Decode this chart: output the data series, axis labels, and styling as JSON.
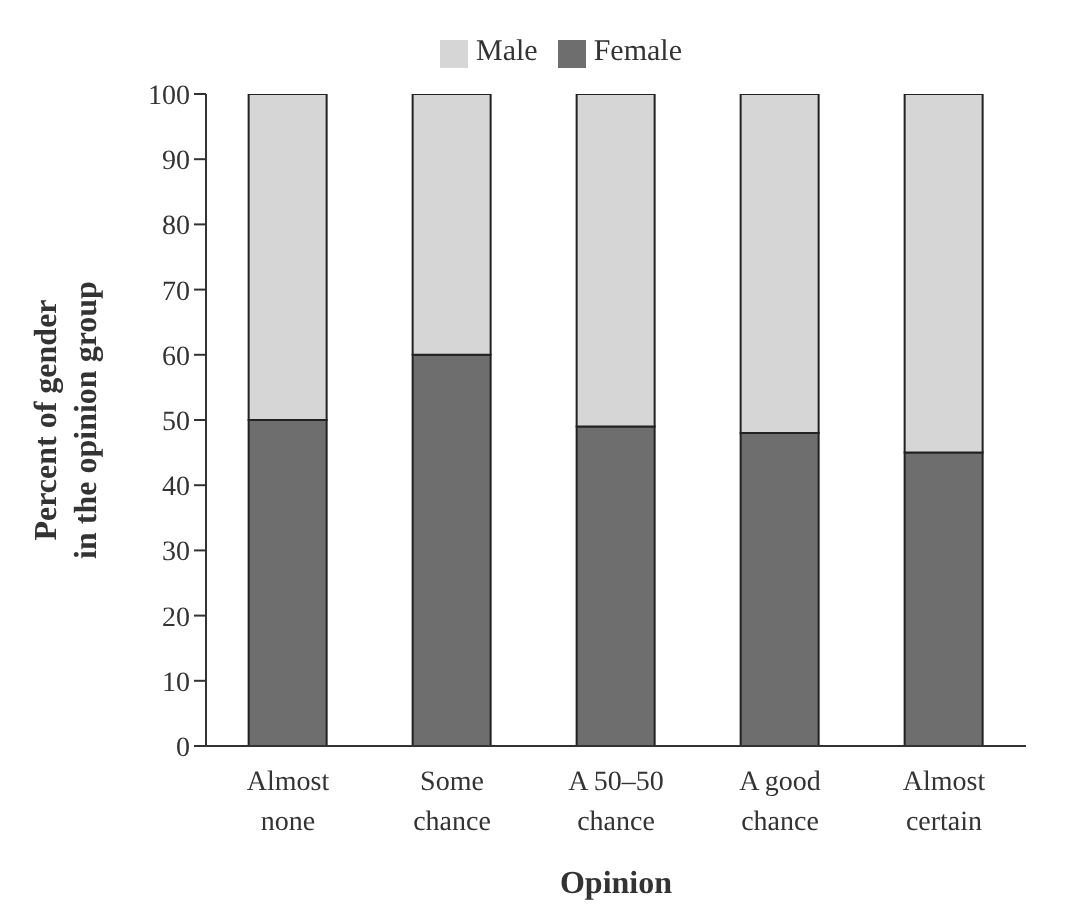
{
  "chart_data": {
    "type": "bar",
    "stacked": true,
    "xlabel": "Opinion",
    "ylabel": "Percent of gender\nin the opinion group",
    "categories": [
      "Almost\nnone",
      "Some\nchance",
      "A 50–50\nchance",
      "A good\nchance",
      "Almost\ncertain"
    ],
    "series": [
      {
        "name": "Female",
        "color": "#6e6e6e",
        "values": [
          50,
          60,
          49,
          48,
          45
        ]
      },
      {
        "name": "Male",
        "color": "#d6d6d6",
        "values": [
          50,
          40,
          51,
          52,
          55
        ]
      }
    ],
    "ylim": [
      0,
      100
    ],
    "yticks": [
      0,
      10,
      20,
      30,
      40,
      50,
      60,
      70,
      80,
      90,
      100
    ],
    "legend": "top",
    "grid": false
  }
}
